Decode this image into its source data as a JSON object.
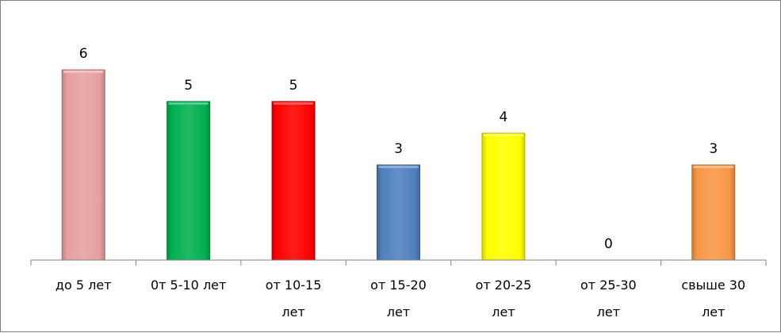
{
  "chart_data": {
    "type": "bar",
    "categories": [
      [
        "до 5 лет"
      ],
      [
        "0т 5-10 лет"
      ],
      [
        "от 10-15",
        "лет"
      ],
      [
        "от 15-20",
        "лет"
      ],
      [
        "от 20-25",
        "лет"
      ],
      [
        "от 25-30",
        "лет"
      ],
      [
        "свыше 30",
        "лет"
      ]
    ],
    "values": [
      6,
      5,
      5,
      3,
      4,
      0,
      3
    ],
    "bar_colors": [
      "#e6a0a0",
      "#00b050",
      "#ff0000",
      "#4f81bd",
      "#ffff00",
      "#a5a5a5",
      "#f79646"
    ],
    "title": "",
    "xlabel": "",
    "ylabel": "",
    "ylim": [
      0,
      6.2
    ],
    "grid": false,
    "legend": "none",
    "show_data_labels": true
  }
}
